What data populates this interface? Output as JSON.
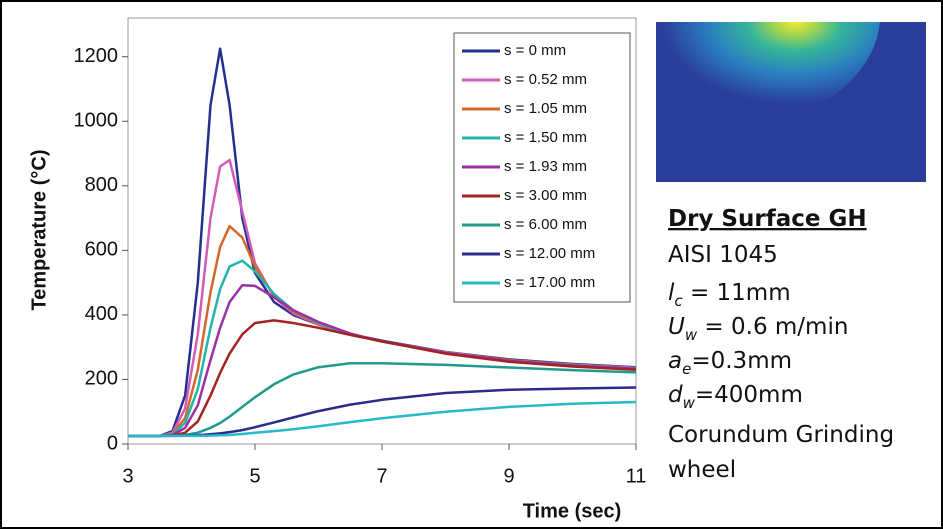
{
  "chart_data": {
    "type": "line",
    "x_label": "Time (sec)",
    "y_label": "Temperature (°C)",
    "xlim": [
      3,
      11
    ],
    "xticks": [
      3,
      5,
      7,
      9,
      11
    ],
    "ylim": [
      0,
      1320
    ],
    "yticks": [
      0,
      200,
      400,
      600,
      800,
      1000,
      1200
    ],
    "legend": "upper right",
    "x": [
      3,
      3.5,
      3.7,
      3.9,
      4.1,
      4.3,
      4.45,
      4.6,
      4.8,
      5.0,
      5.3,
      5.6,
      6,
      6.5,
      7,
      8,
      9,
      10,
      11
    ],
    "series": [
      {
        "name": "s = 0 mm",
        "color": "#23308f",
        "values": [
          25,
          25,
          40,
          150,
          500,
          1050,
          1225,
          1050,
          700,
          530,
          440,
          400,
          370,
          340,
          320,
          285,
          262,
          248,
          238
        ]
      },
      {
        "name": "s = 0.52 mm",
        "color": "#d45ab8",
        "values": [
          25,
          25,
          35,
          110,
          340,
          700,
          860,
          880,
          720,
          560,
          455,
          405,
          370,
          340,
          318,
          284,
          260,
          246,
          236
        ]
      },
      {
        "name": "s = 1.05 mm",
        "color": "#d2692a",
        "values": [
          25,
          25,
          32,
          80,
          230,
          470,
          610,
          675,
          640,
          550,
          460,
          410,
          372,
          340,
          318,
          283,
          260,
          245,
          235
        ]
      },
      {
        "name": "s = 1.50 mm",
        "color": "#22b5aa",
        "values": [
          25,
          25,
          30,
          65,
          170,
          360,
          480,
          550,
          568,
          535,
          465,
          415,
          375,
          340,
          317,
          282,
          258,
          244,
          234
        ]
      },
      {
        "name": "s = 1.93 mm",
        "color": "#9b30a5",
        "values": [
          25,
          25,
          28,
          50,
          120,
          260,
          360,
          440,
          492,
          490,
          455,
          415,
          378,
          342,
          318,
          282,
          258,
          243,
          233
        ]
      },
      {
        "name": "s = 3.00 mm",
        "color": "#a52222",
        "values": [
          25,
          25,
          26,
          35,
          70,
          150,
          220,
          280,
          340,
          375,
          383,
          375,
          360,
          338,
          318,
          280,
          255,
          240,
          230
        ]
      },
      {
        "name": "s = 6.00 mm",
        "color": "#1f9a8c",
        "values": [
          25,
          25,
          25,
          28,
          35,
          50,
          65,
          85,
          115,
          145,
          185,
          215,
          238,
          250,
          250,
          245,
          237,
          229,
          222
        ]
      },
      {
        "name": "s = 12.00 mm",
        "color": "#2b2b8c",
        "values": [
          25,
          25,
          25,
          26,
          27,
          30,
          33,
          37,
          43,
          52,
          67,
          82,
          102,
          122,
          137,
          158,
          168,
          172,
          175
        ]
      },
      {
        "name": "s = 17.00 mm",
        "color": "#27b8cc",
        "values": [
          25,
          25,
          25,
          25,
          25,
          26,
          27,
          28,
          31,
          35,
          40,
          46,
          55,
          68,
          80,
          100,
          115,
          125,
          130
        ]
      }
    ]
  },
  "side": {
    "heading": "Dry Surface GH",
    "material": "AISI 1045",
    "params": [
      {
        "symbol": "l",
        "sub": "c",
        "rest": " = 11mm"
      },
      {
        "symbol": "U",
        "sub": "w",
        "rest": " = 0.6 m/min"
      },
      {
        "symbol": "a",
        "sub": "e",
        "rest": "=0.3mm"
      },
      {
        "symbol": "d",
        "sub": "w",
        "rest": "=400mm"
      }
    ],
    "wheel": [
      "Corundum  Grinding",
      "wheel"
    ]
  }
}
